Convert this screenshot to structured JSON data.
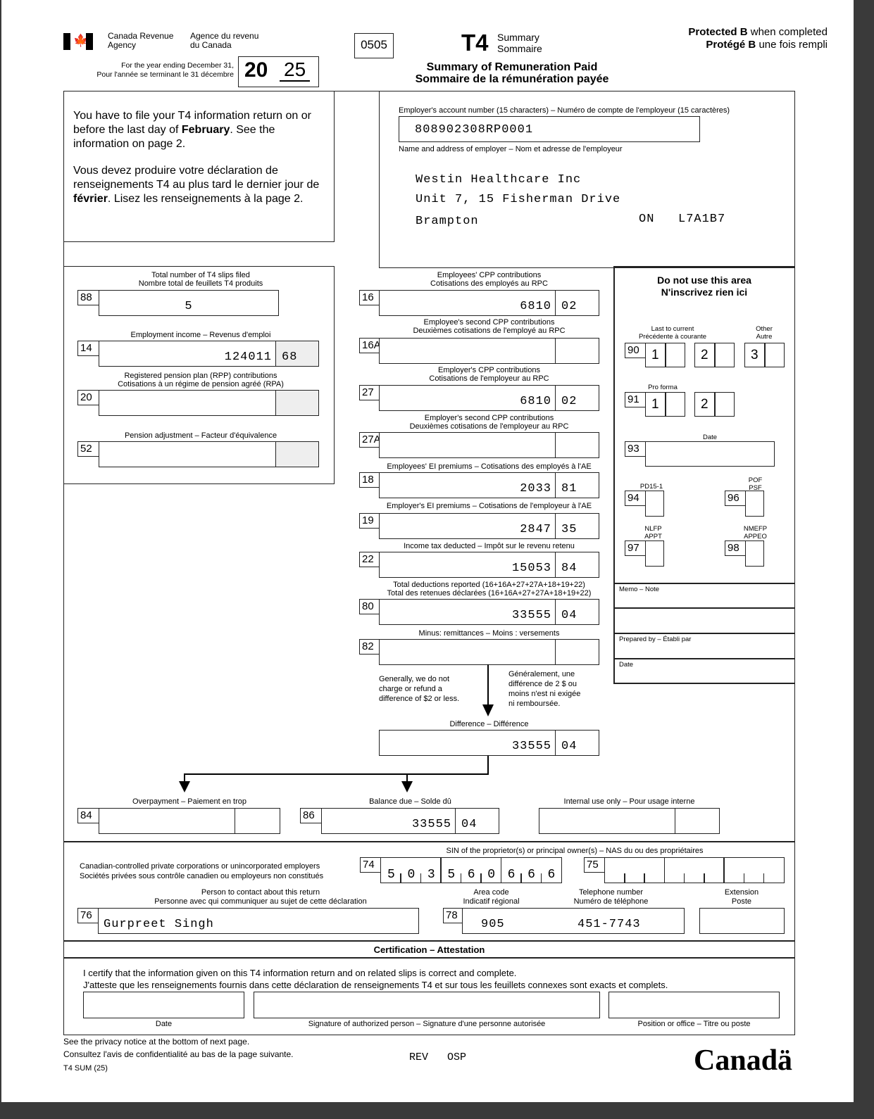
{
  "agency": {
    "en": [
      "Canada Revenue",
      "Agency"
    ],
    "fr": [
      "Agence du revenu",
      "du Canada"
    ]
  },
  "year_label": [
    "For the year ending December 31,",
    "Pour l'année se terminant le 31 décembre"
  ],
  "year": {
    "prefix": "20",
    "suffix": "25"
  },
  "form_code": "0505",
  "form_name": "T4",
  "form_type": [
    "Summary",
    "Sommaire"
  ],
  "protected": {
    "en_bold": "Protected B",
    "en_rest": " when completed",
    "fr_bold": "Protégé B",
    "fr_rest": " une fois rempli"
  },
  "title": [
    "Summary of Remuneration Paid",
    "Sommaire de la rémunération payée"
  ],
  "info": {
    "en_pre": "You have to file your T4 information return on or before the last day of ",
    "en_bold": "February",
    "en_post": ". See the information on page 2.",
    "fr_pre": "Vous devez produire votre déclaration de renseignements T4 au plus tard le dernier jour de ",
    "fr_bold": "février",
    "fr_post": ". Lisez les renseignements à la page 2."
  },
  "employer": {
    "account_label": "Employer's account number (15 characters) – Numéro de compte de l'employeur (15 caractères)",
    "account_number": "808902308RP0001",
    "name_label": "Name and address of employer – Nom et adresse de l'employeur",
    "name": "Westin Healthcare Inc",
    "address": "Unit 7, 15 Fisherman Drive",
    "city": "Brampton",
    "province": "ON",
    "postal_code": "L7A1B7"
  },
  "boxes": [
    {
      "code": "88",
      "label": [
        "Total number of T4 slips filed",
        "Nombre total de feuillets T4 produits"
      ],
      "dollars": "5",
      "cents": ""
    },
    {
      "code": "14",
      "label": [
        "Employment income – Revenus d'emploi"
      ],
      "dollars": "124011",
      "cents": "68"
    },
    {
      "code": "20",
      "label": [
        "Registered pension plan (RPP) contributions",
        "Cotisations à un régime de pension agréé (RPA)"
      ],
      "dollars": "",
      "cents": ""
    },
    {
      "code": "52",
      "label": [
        "Pension adjustment – Facteur d'équivalence"
      ],
      "dollars": "",
      "cents": ""
    },
    {
      "code": "16",
      "label": [
        "Employees' CPP contributions",
        "Cotisations des employés au RPC"
      ],
      "dollars": "6810",
      "cents": "02"
    },
    {
      "code": "16A",
      "label": [
        "Employee's second CPP contributions",
        "Deuxièmes cotisations de l'employé au RPC"
      ],
      "dollars": "",
      "cents": ""
    },
    {
      "code": "27",
      "label": [
        "Employer's CPP contributions",
        "Cotisations de l'employeur au RPC"
      ],
      "dollars": "6810",
      "cents": "02"
    },
    {
      "code": "27A",
      "label": [
        "Employer's second CPP contributions",
        "Deuxièmes cotisations de l'employeur au RPC"
      ],
      "dollars": "",
      "cents": ""
    },
    {
      "code": "18",
      "label": [
        "Employees' EI premiums – Cotisations des employés à l'AE"
      ],
      "dollars": "2033",
      "cents": "81"
    },
    {
      "code": "19",
      "label": [
        "Employer's EI premiums – Cotisations de l'employeur à l'AE"
      ],
      "dollars": "2847",
      "cents": "35"
    },
    {
      "code": "22",
      "label": [
        "Income tax deducted – Impôt sur le revenu retenu"
      ],
      "dollars": "15053",
      "cents": "84"
    },
    {
      "code": "80",
      "label": [
        "Total deductions reported (16+16A+27+27A+18+19+22)",
        "Total des retenues déclarées (16+16A+27+27A+18+19+22)"
      ],
      "dollars": "33555",
      "cents": "04"
    },
    {
      "code": "82",
      "label": [
        "Minus: remittances – Moins : versements"
      ],
      "dollars": "",
      "cents": ""
    },
    {
      "code": "",
      "label": [
        "Difference – Différence"
      ],
      "dollars": "33555",
      "cents": "04"
    },
    {
      "code": "84",
      "label": [
        "Overpayment – Paiement en trop"
      ],
      "dollars": "",
      "cents": ""
    },
    {
      "code": "86",
      "label": [
        "Balance due – Solde dû"
      ],
      "dollars": "33555",
      "cents": "04"
    },
    {
      "code": "",
      "label": [
        "Internal use only – Pour usage interne"
      ],
      "dollars": "",
      "cents": ""
    }
  ],
  "notes": {
    "en": [
      "Generally, we do not",
      "charge or refund a",
      "difference of $2 or less."
    ],
    "fr": [
      "Généralement, une",
      "différence de 2 $ ou",
      "moins n'est ni exigée",
      "ni remboursée."
    ]
  },
  "cra_area": {
    "title": [
      "Do not use this area",
      "N'inscrivez rien ici"
    ],
    "last_to_current": [
      "Last to current",
      "Précédente à courante"
    ],
    "other": [
      "Other",
      "Autre"
    ],
    "pro_forma": "Pro forma",
    "date": "Date",
    "pd15": "PD15-1",
    "pof": [
      "POF",
      "PSF"
    ],
    "nlfp": [
      "NLFP",
      "APPT"
    ],
    "nmefp": [
      "NMEFP",
      "APPEO"
    ],
    "codes": {
      "b90": "90",
      "b91": "91",
      "b93": "93",
      "b94": "94",
      "b96": "96",
      "b97": "97",
      "b98": "98"
    },
    "digits": {
      "d1": "1",
      "d2": "2",
      "d3": "3"
    },
    "memo": "Memo – Note",
    "prepared_by": "Prepared by – Établi par",
    "date2": "Date"
  },
  "sin": {
    "label": "SIN of the proprietor(s) or principal owner(s) – NAS du ou des propriétaires",
    "ccpc": [
      "Canadian-controlled private corporations or unincorporated employers",
      "Sociétés privées sous contrôle canadien ou employeurs non constitués"
    ],
    "code74": "74",
    "sin74": [
      "5",
      "0",
      "3",
      "5",
      "6",
      "0",
      "6",
      "6",
      "6"
    ],
    "code75": "75"
  },
  "contact": {
    "person_label": [
      "Person to contact about this return",
      "Personne avec qui communiquer au sujet de cette déclaration"
    ],
    "area_label": [
      "Area code",
      "Indicatif régional"
    ],
    "phone_label": [
      "Telephone number",
      "Numéro de téléphone"
    ],
    "ext_label": [
      "Extension",
      "Poste"
    ],
    "code76": "76",
    "name": "Gurpreet Singh",
    "code78": "78",
    "area_code": "905",
    "phone": "451-7743"
  },
  "certification": {
    "title": "Certification – Attestation",
    "text": [
      "I certify that the information given on this T4 information return and on related slips is correct and complete.",
      "J'atteste que les renseignements fournis dans cette déclaration de renseignements T4 et sur tous les feuillets connexes sont exacts et complets."
    ],
    "date_label": "Date",
    "signature_label": "Signature of authorized person – Signature d'une personne autorisée",
    "position_label": "Position or office – Titre ou poste"
  },
  "footer": {
    "privacy": [
      "See the privacy notice at the bottom of next page.",
      "Consultez l'avis de confidentialité au bas de la page suivante."
    ],
    "form_id": "T4 SUM (25)",
    "codes": "REV   OSP",
    "wordmark": "Canadä"
  }
}
